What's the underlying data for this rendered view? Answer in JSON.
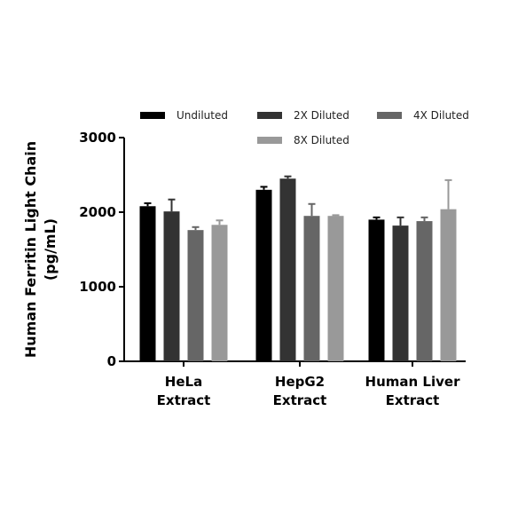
{
  "chart_data": {
    "type": "bar",
    "y_label": [
      "Human Ferritin Light Chain",
      "(pg/mL)"
    ],
    "categories": [
      [
        "HeLa",
        "Extract"
      ],
      [
        "HepG2",
        "Extract"
      ],
      [
        "Human Liver",
        "Extract"
      ]
    ],
    "series": [
      {
        "name": "Undiluted",
        "color": "#000000",
        "values": [
          2080,
          2300,
          1900
        ],
        "errors": [
          40,
          40,
          30
        ]
      },
      {
        "name": "2X Diluted",
        "color": "#333333",
        "values": [
          2010,
          2450,
          1820
        ],
        "errors": [
          160,
          30,
          110
        ]
      },
      {
        "name": "4X Diluted",
        "color": "#666666",
        "values": [
          1760,
          1950,
          1880
        ],
        "errors": [
          40,
          160,
          50
        ]
      },
      {
        "name": "8X Diluted",
        "color": "#999999",
        "values": [
          1830,
          1950,
          2040
        ],
        "errors": [
          60,
          10,
          390
        ]
      }
    ],
    "ylim": [
      0,
      3000
    ],
    "yticks": [
      0,
      1000,
      2000,
      3000
    ],
    "legend": "top"
  }
}
